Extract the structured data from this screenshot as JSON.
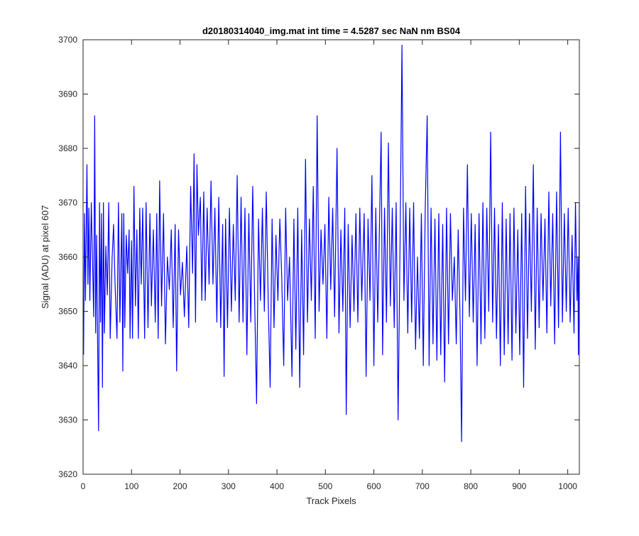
{
  "chart_data": {
    "type": "line",
    "title": "d20180314040_img.mat int time = 4.5287 sec  NaN nm BS04",
    "xlabel": "Track Pixels",
    "ylabel": "Signal (ADU) at pixel 607",
    "xlim": [
      0,
      1024
    ],
    "ylim": [
      3620,
      3700
    ],
    "xticks": [
      0,
      100,
      200,
      300,
      400,
      500,
      600,
      700,
      800,
      900,
      1000
    ],
    "yticks": [
      3620,
      3630,
      3640,
      3650,
      3660,
      3670,
      3680,
      3690,
      3700
    ],
    "grid": false,
    "legend": "none",
    "line_color": "#0000ff",
    "series": [
      {
        "points": [
          [
            1,
            3642
          ],
          [
            3,
            3668
          ],
          [
            5,
            3652
          ],
          [
            8,
            3677
          ],
          [
            10,
            3655
          ],
          [
            12,
            3669
          ],
          [
            14,
            3652
          ],
          [
            17,
            3670
          ],
          [
            20,
            3657
          ],
          [
            22,
            3649
          ],
          [
            24,
            3686
          ],
          [
            26,
            3646
          ],
          [
            28,
            3664
          ],
          [
            30,
            3644
          ],
          [
            32,
            3628
          ],
          [
            34,
            3670
          ],
          [
            36,
            3648
          ],
          [
            38,
            3668
          ],
          [
            40,
            3636
          ],
          [
            42,
            3670
          ],
          [
            44,
            3646
          ],
          [
            47,
            3662
          ],
          [
            50,
            3653
          ],
          [
            53,
            3670
          ],
          [
            56,
            3645
          ],
          [
            60,
            3660
          ],
          [
            63,
            3666
          ],
          [
            66,
            3655
          ],
          [
            70,
            3645
          ],
          [
            73,
            3670
          ],
          [
            76,
            3648
          ],
          [
            80,
            3668
          ],
          [
            82,
            3639
          ],
          [
            84,
            3668
          ],
          [
            86,
            3647
          ],
          [
            89,
            3664
          ],
          [
            92,
            3657
          ],
          [
            95,
            3665
          ],
          [
            97,
            3645
          ],
          [
            100,
            3663
          ],
          [
            102,
            3645
          ],
          [
            105,
            3673
          ],
          [
            108,
            3651
          ],
          [
            111,
            3665
          ],
          [
            114,
            3645
          ],
          [
            117,
            3669
          ],
          [
            120,
            3655
          ],
          [
            123,
            3669
          ],
          [
            127,
            3645
          ],
          [
            130,
            3670
          ],
          [
            134,
            3647
          ],
          [
            138,
            3668
          ],
          [
            141,
            3651
          ],
          [
            145,
            3665
          ],
          [
            149,
            3648
          ],
          [
            152,
            3668
          ],
          [
            155,
            3645
          ],
          [
            158,
            3674
          ],
          [
            162,
            3651
          ],
          [
            166,
            3668
          ],
          [
            170,
            3644
          ],
          [
            174,
            3660
          ],
          [
            178,
            3654
          ],
          [
            182,
            3665
          ],
          [
            186,
            3647
          ],
          [
            190,
            3666
          ],
          [
            193,
            3639
          ],
          [
            197,
            3665
          ],
          [
            201,
            3653
          ],
          [
            205,
            3659
          ],
          [
            209,
            3649
          ],
          [
            214,
            3662
          ],
          [
            218,
            3647
          ],
          [
            222,
            3673
          ],
          [
            226,
            3657
          ],
          [
            229,
            3679
          ],
          [
            232,
            3648
          ],
          [
            235,
            3677
          ],
          [
            238,
            3664
          ],
          [
            242,
            3671
          ],
          [
            245,
            3652
          ],
          [
            249,
            3672
          ],
          [
            252,
            3652
          ],
          [
            256,
            3669
          ],
          [
            260,
            3655
          ],
          [
            264,
            3674
          ],
          [
            268,
            3655
          ],
          [
            272,
            3669
          ],
          [
            276,
            3648
          ],
          [
            280,
            3671
          ],
          [
            284,
            3647
          ],
          [
            288,
            3666
          ],
          [
            291,
            3638
          ],
          [
            294,
            3667
          ],
          [
            298,
            3647
          ],
          [
            302,
            3669
          ],
          [
            306,
            3650
          ],
          [
            310,
            3666
          ],
          [
            314,
            3652
          ],
          [
            318,
            3675
          ],
          [
            322,
            3648
          ],
          [
            326,
            3671
          ],
          [
            330,
            3648
          ],
          [
            334,
            3669
          ],
          [
            338,
            3642
          ],
          [
            342,
            3668
          ],
          [
            346,
            3648
          ],
          [
            350,
            3673
          ],
          [
            354,
            3652
          ],
          [
            358,
            3633
          ],
          [
            362,
            3667
          ],
          [
            366,
            3652
          ],
          [
            370,
            3669
          ],
          [
            374,
            3650
          ],
          [
            378,
            3672
          ],
          [
            382,
            3652
          ],
          [
            386,
            3636
          ],
          [
            390,
            3667
          ],
          [
            394,
            3647
          ],
          [
            398,
            3664
          ],
          [
            402,
            3652
          ],
          [
            406,
            3667
          ],
          [
            410,
            3656
          ],
          [
            414,
            3640
          ],
          [
            418,
            3669
          ],
          [
            422,
            3652
          ],
          [
            426,
            3660
          ],
          [
            431,
            3638
          ],
          [
            435,
            3667
          ],
          [
            439,
            3643
          ],
          [
            443,
            3669
          ],
          [
            447,
            3636
          ],
          [
            451,
            3665
          ],
          [
            455,
            3642
          ],
          [
            459,
            3678
          ],
          [
            463,
            3648
          ],
          [
            467,
            3667
          ],
          [
            471,
            3652
          ],
          [
            475,
            3673
          ],
          [
            479,
            3645
          ],
          [
            483,
            3686
          ],
          [
            487,
            3650
          ],
          [
            491,
            3665
          ],
          [
            495,
            3655
          ],
          [
            499,
            3666
          ],
          [
            503,
            3645
          ],
          [
            507,
            3671
          ],
          [
            511,
            3654
          ],
          [
            515,
            3669
          ],
          [
            519,
            3649
          ],
          [
            524,
            3680
          ],
          [
            528,
            3646
          ],
          [
            532,
            3665
          ],
          [
            536,
            3650
          ],
          [
            540,
            3669
          ],
          [
            543,
            3631
          ],
          [
            547,
            3666
          ],
          [
            551,
            3647
          ],
          [
            555,
            3664
          ],
          [
            559,
            3650
          ],
          [
            563,
            3668
          ],
          [
            567,
            3648
          ],
          [
            571,
            3669
          ],
          [
            575,
            3652
          ],
          [
            580,
            3668
          ],
          [
            584,
            3638
          ],
          [
            588,
            3667
          ],
          [
            592,
            3652
          ],
          [
            596,
            3675
          ],
          [
            600,
            3640
          ],
          [
            604,
            3669
          ],
          [
            608,
            3648
          ],
          [
            612,
            3668
          ],
          [
            615,
            3683
          ],
          [
            618,
            3642
          ],
          [
            622,
            3669
          ],
          [
            626,
            3648
          ],
          [
            630,
            3681
          ],
          [
            634,
            3651
          ],
          [
            638,
            3669
          ],
          [
            642,
            3647
          ],
          [
            646,
            3670
          ],
          [
            650,
            3630
          ],
          [
            654,
            3662
          ],
          [
            658,
            3699
          ],
          [
            662,
            3652
          ],
          [
            666,
            3670
          ],
          [
            670,
            3646
          ],
          [
            674,
            3669
          ],
          [
            678,
            3648
          ],
          [
            682,
            3670
          ],
          [
            686,
            3643
          ],
          [
            690,
            3660
          ],
          [
            694,
            3645
          ],
          [
            698,
            3668
          ],
          [
            702,
            3640
          ],
          [
            706,
            3669
          ],
          [
            710,
            3686
          ],
          [
            714,
            3640
          ],
          [
            718,
            3669
          ],
          [
            722,
            3644
          ],
          [
            726,
            3667
          ],
          [
            730,
            3641
          ],
          [
            734,
            3668
          ],
          [
            738,
            3642
          ],
          [
            742,
            3666
          ],
          [
            746,
            3637
          ],
          [
            750,
            3669
          ],
          [
            754,
            3644
          ],
          [
            758,
            3668
          ],
          [
            762,
            3652
          ],
          [
            766,
            3660
          ],
          [
            770,
            3644
          ],
          [
            774,
            3665
          ],
          [
            778,
            3648
          ],
          [
            781,
            3626
          ],
          [
            785,
            3669
          ],
          [
            789,
            3652
          ],
          [
            793,
            3677
          ],
          [
            797,
            3649
          ],
          [
            801,
            3668
          ],
          [
            805,
            3648
          ],
          [
            809,
            3666
          ],
          [
            813,
            3640
          ],
          [
            817,
            3668
          ],
          [
            821,
            3644
          ],
          [
            825,
            3670
          ],
          [
            829,
            3645
          ],
          [
            833,
            3669
          ],
          [
            837,
            3650
          ],
          [
            841,
            3683
          ],
          [
            845,
            3648
          ],
          [
            849,
            3669
          ],
          [
            853,
            3645
          ],
          [
            857,
            3666
          ],
          [
            861,
            3640
          ],
          [
            865,
            3670
          ],
          [
            869,
            3642
          ],
          [
            873,
            3667
          ],
          [
            877,
            3644
          ],
          [
            881,
            3668
          ],
          [
            885,
            3641
          ],
          [
            889,
            3669
          ],
          [
            893,
            3646
          ],
          [
            897,
            3665
          ],
          [
            901,
            3642
          ],
          [
            905,
            3668
          ],
          [
            909,
            3636
          ],
          [
            913,
            3673
          ],
          [
            917,
            3645
          ],
          [
            921,
            3668
          ],
          [
            925,
            3650
          ],
          [
            929,
            3677
          ],
          [
            933,
            3643
          ],
          [
            937,
            3669
          ],
          [
            941,
            3647
          ],
          [
            945,
            3668
          ],
          [
            949,
            3652
          ],
          [
            953,
            3667
          ],
          [
            957,
            3646
          ],
          [
            961,
            3672
          ],
          [
            965,
            3651
          ],
          [
            969,
            3668
          ],
          [
            973,
            3644
          ],
          [
            977,
            3672
          ],
          [
            981,
            3647
          ],
          [
            985,
            3683
          ],
          [
            989,
            3648
          ],
          [
            993,
            3668
          ],
          [
            997,
            3650
          ],
          [
            1001,
            3669
          ],
          [
            1005,
            3648
          ],
          [
            1009,
            3664
          ],
          [
            1013,
            3646
          ],
          [
            1016,
            3670
          ],
          [
            1019,
            3652
          ],
          [
            1021,
            3660
          ],
          [
            1022,
            3642
          ],
          [
            1024,
            3670
          ]
        ]
      }
    ]
  }
}
